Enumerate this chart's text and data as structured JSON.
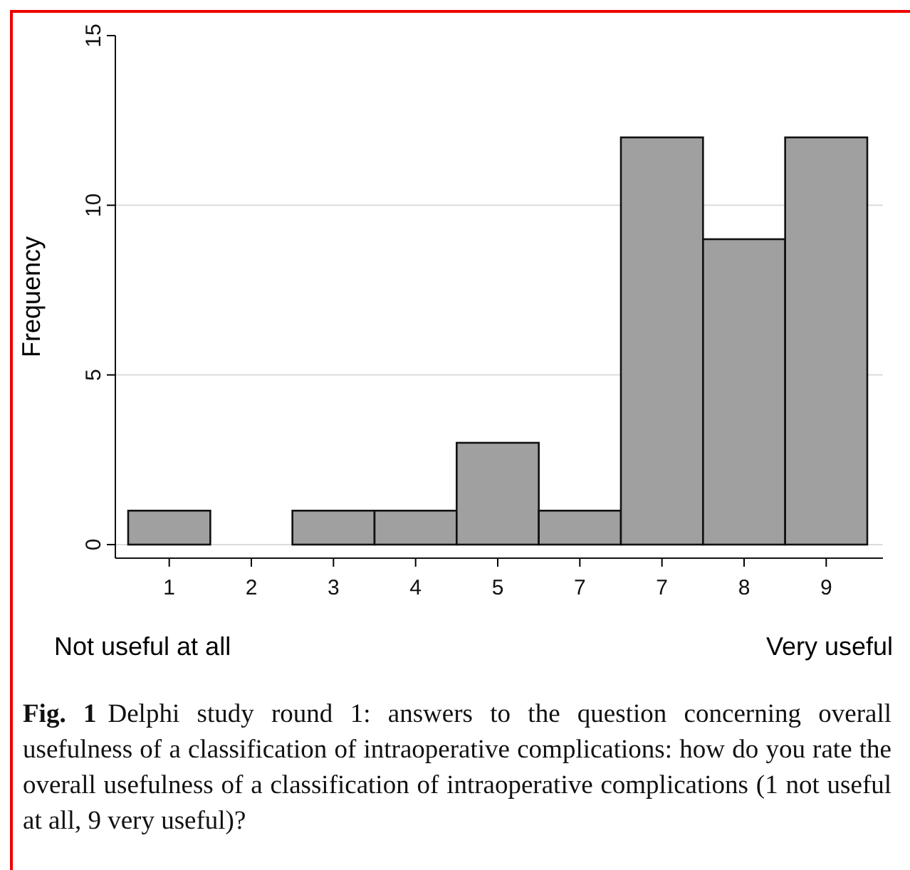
{
  "chart_data": {
    "type": "bar",
    "ylabel": "Frequency",
    "categories": [
      "1",
      "2",
      "3",
      "4",
      "5",
      "7",
      "7",
      "8",
      "9"
    ],
    "values": [
      1,
      0,
      1,
      1,
      3,
      1,
      12,
      9,
      12
    ],
    "color": "#a0a0a0",
    "ylim": [
      -0.4,
      15
    ],
    "yticks": [
      0,
      5,
      10,
      15
    ],
    "grid": "y",
    "annotations": [
      "Not useful at all",
      "Very useful",
      "Fig. 1",
      "Delphi study round 1: answers to the question concerning overall usefulness of a classification of intraoperative complications: how do you rate the overall usefulness of a classification of intraoperative complications (1 not useful at all, 9 very useful)?"
    ]
  }
}
